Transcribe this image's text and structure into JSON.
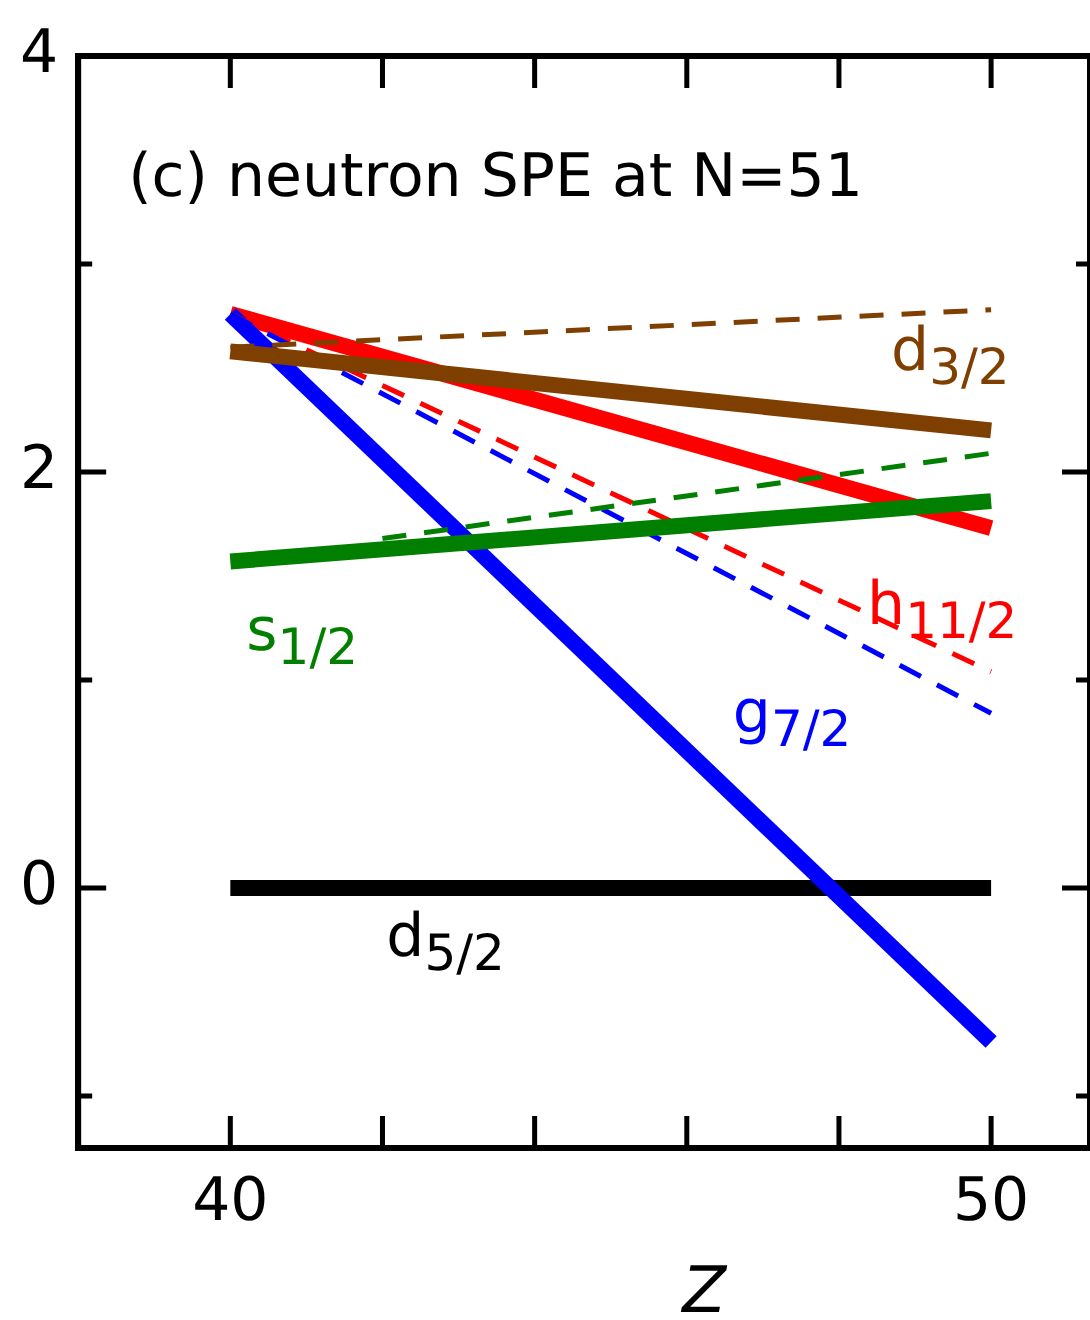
{
  "chart_data": {
    "type": "line",
    "title": "(c) neutron SPE at N=51",
    "xlabel": "Z",
    "xlim": [
      38,
      51.3
    ],
    "ylim": [
      -1.25,
      4
    ],
    "xticks": [
      40,
      {
        "value": 42,
        "label": null
      },
      {
        "value": 44,
        "label": null
      },
      {
        "value": 46,
        "label": null
      },
      {
        "value": 48,
        "label": null
      },
      50
    ],
    "yticks": [
      {
        "value": -1,
        "label": null
      },
      0,
      {
        "value": 1,
        "label": null
      },
      2,
      {
        "value": 3,
        "label": null
      },
      4
    ],
    "grid": false,
    "legend": false,
    "marker": "none",
    "series": [
      {
        "name": "d$_{3/2}$",
        "color": "#7f3f00",
        "x": [
          40,
          50
        ],
        "values": [
          2.58,
          2.2
        ],
        "line_style": "solid"
      },
      {
        "color": "#7f3f00",
        "x": [
          40,
          50
        ],
        "values": [
          2.6,
          2.78
        ],
        "line_style": "dashed"
      },
      {
        "name": "s$_{1/2}$",
        "color": "#007f00",
        "x": [
          40,
          50
        ],
        "values": [
          1.57,
          1.86
        ],
        "line_style": "solid"
      },
      {
        "color": "#007f00",
        "x": [
          42,
          50
        ],
        "values": [
          1.68,
          2.09
        ],
        "line_style": "dashed"
      },
      {
        "color": "#0000ff",
        "x": [
          40,
          50
        ],
        "values": [
          2.76,
          0.84
        ],
        "line_style": "dashed"
      },
      {
        "color": "#ff0000",
        "x": [
          40,
          50
        ],
        "values": [
          2.76,
          1.04
        ],
        "line_style": "dashed"
      },
      {
        "name": "g$_{7/2}$",
        "color": "#0000ff",
        "x": [
          40,
          50
        ],
        "values": [
          2.76,
          -0.74
        ],
        "line_style": "solid"
      },
      {
        "name": "h$_{11/2}$",
        "color": "#ff0000",
        "x": [
          40,
          50
        ],
        "values": [
          2.76,
          1.73
        ],
        "line_style": "solid"
      },
      {
        "name": "d$_{5/2}$",
        "color": "#000000",
        "x": [
          40,
          50
        ],
        "values": [
          0,
          0
        ],
        "line_style": "solid"
      }
    ]
  }
}
